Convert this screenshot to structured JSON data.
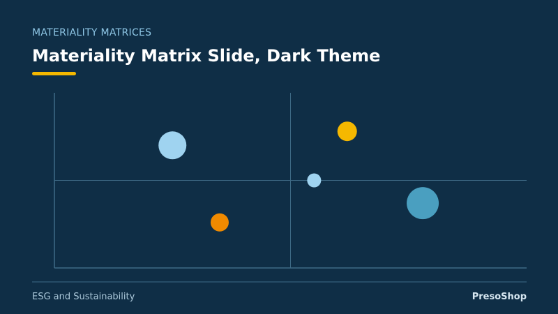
{
  "header": {
    "kicker": "MATERIALITY MATRICES",
    "title": "Materiality Matrix Slide, Dark Theme"
  },
  "footer": {
    "left": "ESG and Sustainability",
    "right": "PresoShop"
  },
  "chart_data": {
    "type": "bubble",
    "x": [
      25,
      62,
      55,
      78,
      35
    ],
    "values": [
      70,
      78,
      50,
      37,
      26
    ],
    "sizes": [
      20,
      14,
      10,
      23,
      13
    ],
    "colors": [
      "#9fd3f0",
      "#f5b800",
      "#9fd3f0",
      "#4a9fc0",
      "#f08a00"
    ],
    "xlim": [
      0,
      100
    ],
    "ylim": [
      0,
      100
    ]
  }
}
